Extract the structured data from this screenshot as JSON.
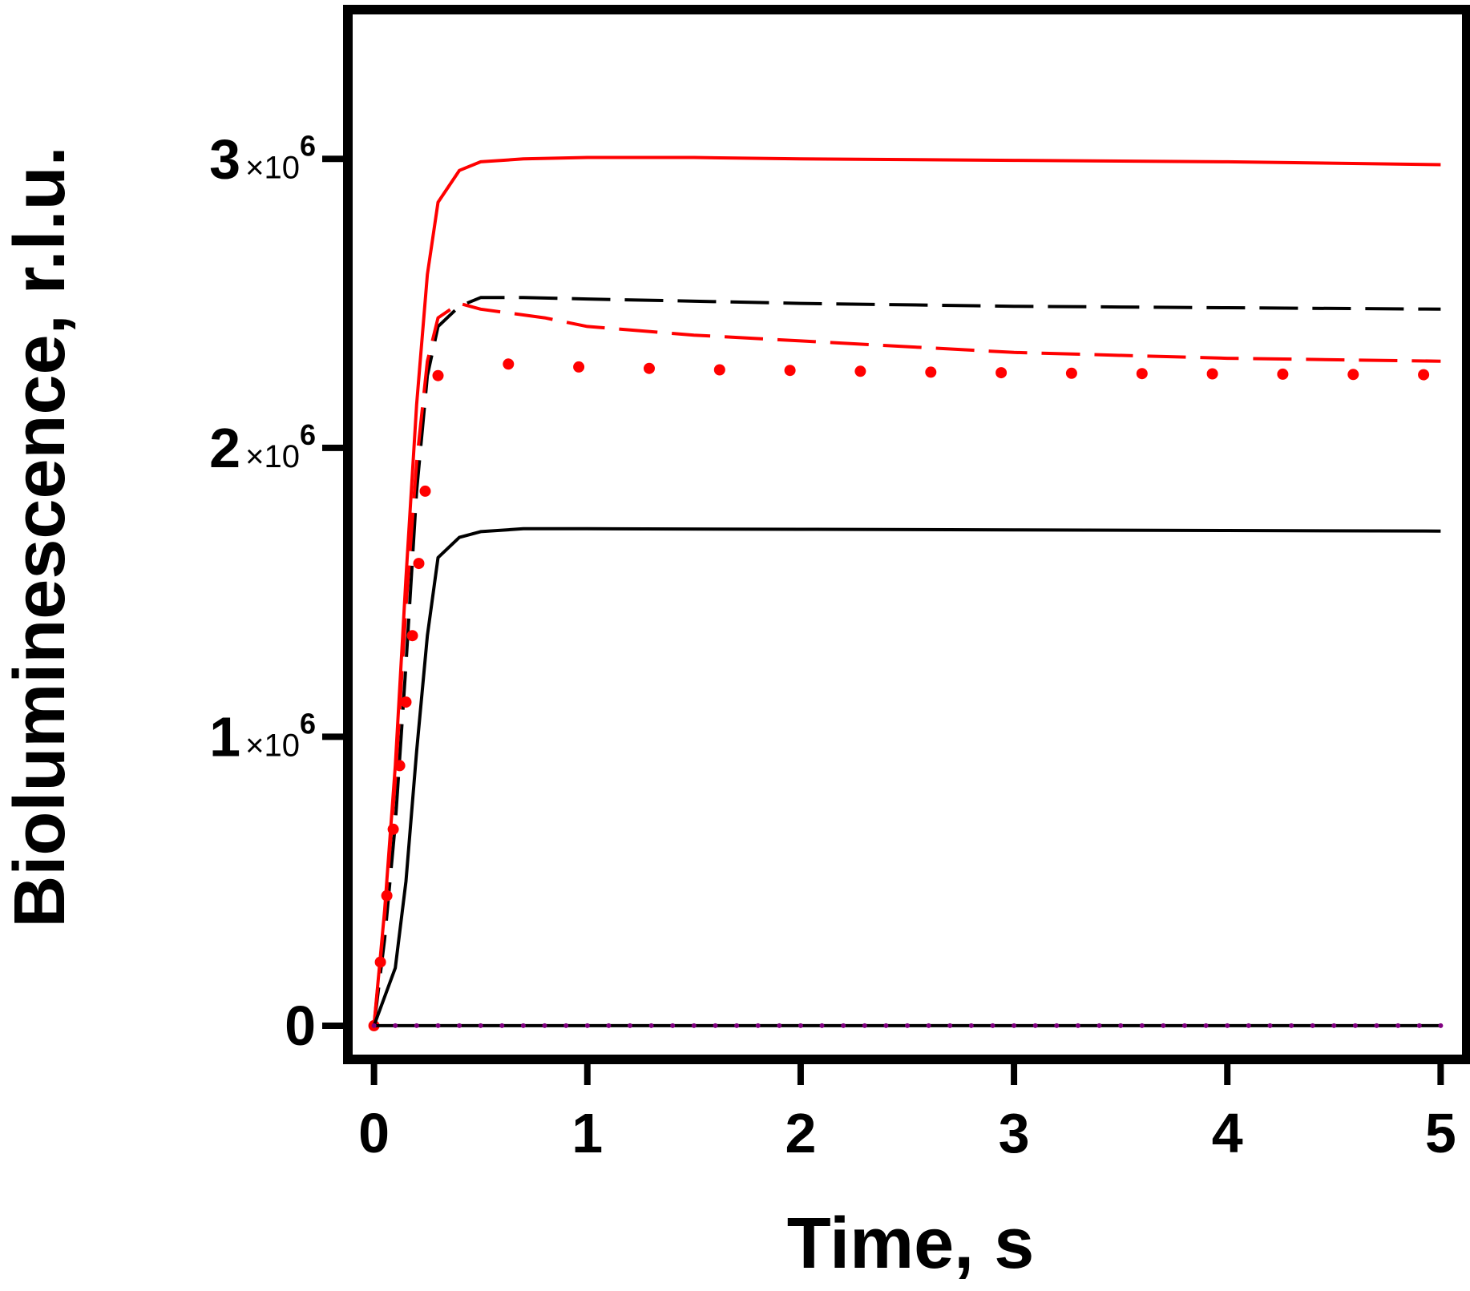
{
  "chart_data": {
    "type": "line",
    "title": "",
    "xlabel": "Time, s",
    "ylabel": "Bioluminescence, r.l.u.",
    "xlim": [
      -0.1,
      5.1
    ],
    "ylim": [
      -100000,
      3500000
    ],
    "x_ticks": [
      {
        "value": 0,
        "label": "0"
      },
      {
        "value": 1,
        "label": "1"
      },
      {
        "value": 2,
        "label": "2"
      },
      {
        "value": 3,
        "label": "3"
      },
      {
        "value": 4,
        "label": "4"
      },
      {
        "value": 5,
        "label": "5"
      }
    ],
    "y_ticks": [
      {
        "value": 0,
        "label": "0",
        "mantissa": "",
        "times": "",
        "exp": ""
      },
      {
        "value": 1000000,
        "label": "1×10^6",
        "mantissa": "1",
        "times": "×10",
        "exp": "6"
      },
      {
        "value": 2000000,
        "label": "2×10^6",
        "mantissa": "2",
        "times": "×10",
        "exp": "6"
      },
      {
        "value": 3000000,
        "label": "3×10^6",
        "mantissa": "3",
        "times": "×10",
        "exp": "6"
      }
    ],
    "grid": false,
    "legend": "none",
    "series": [
      {
        "color": "#ff0000",
        "style": "solid",
        "x": [
          0,
          0.05,
          0.1,
          0.15,
          0.2,
          0.25,
          0.3,
          0.4,
          0.5,
          0.7,
          1.0,
          1.5,
          2.0,
          3.0,
          4.0,
          5.0
        ],
        "y": [
          0,
          400000,
          900000,
          1550000,
          2150000,
          2600000,
          2850000,
          2960000,
          2990000,
          3000000,
          3005000,
          3005000,
          3000000,
          2995000,
          2990000,
          2980000
        ]
      },
      {
        "color": "#000000",
        "style": "dashed",
        "x": [
          0,
          0.05,
          0.1,
          0.15,
          0.2,
          0.25,
          0.3,
          0.4,
          0.5,
          0.7,
          1.0,
          2.0,
          3.0,
          4.0,
          5.0
        ],
        "y": [
          0,
          300000,
          700000,
          1250000,
          1850000,
          2250000,
          2420000,
          2490000,
          2520000,
          2520000,
          2515000,
          2500000,
          2490000,
          2485000,
          2480000
        ]
      },
      {
        "color": "#ff0000",
        "style": "dashed",
        "x": [
          0,
          0.05,
          0.1,
          0.15,
          0.2,
          0.25,
          0.3,
          0.4,
          0.5,
          0.8,
          1.0,
          1.5,
          2.0,
          2.5,
          3.0,
          4.0,
          5.0
        ],
        "y": [
          0,
          380000,
          850000,
          1450000,
          1950000,
          2300000,
          2450000,
          2500000,
          2480000,
          2450000,
          2420000,
          2390000,
          2370000,
          2350000,
          2330000,
          2310000,
          2300000
        ]
      },
      {
        "color": "#ff0000",
        "style": "dotted",
        "x": [
          0,
          0.03,
          0.06,
          0.09,
          0.12,
          0.15,
          0.18,
          0.21,
          0.24,
          0.3,
          0.63,
          0.96,
          1.29,
          1.62,
          1.95,
          2.28,
          2.61,
          2.94,
          3.27,
          3.6,
          3.93,
          4.26,
          4.59,
          4.92
        ],
        "y": [
          0,
          220000,
          450000,
          680000,
          900000,
          1120000,
          1350000,
          1600000,
          1850000,
          2250000,
          2290000,
          2280000,
          2275000,
          2270000,
          2268000,
          2265000,
          2262000,
          2260000,
          2258000,
          2257000,
          2256000,
          2255000,
          2254000,
          2253000
        ]
      },
      {
        "color": "#000000",
        "style": "solid",
        "x": [
          0,
          0.1,
          0.15,
          0.2,
          0.25,
          0.3,
          0.4,
          0.5,
          0.7,
          1.0,
          2.0,
          3.0,
          4.0,
          5.0
        ],
        "y": [
          0,
          200000,
          500000,
          950000,
          1350000,
          1620000,
          1690000,
          1710000,
          1720000,
          1720000,
          1718000,
          1716000,
          1714000,
          1712000
        ]
      },
      {
        "color": "#000000",
        "style": "solid",
        "x": [
          0,
          1,
          2,
          3,
          4,
          5
        ],
        "y": [
          0,
          0,
          0,
          0,
          0,
          0
        ]
      },
      {
        "color": "#800080",
        "style": "dotted",
        "x": [
          0,
          0.1,
          0.2,
          0.3,
          0.4,
          0.5,
          0.6,
          0.7,
          0.8,
          0.9,
          1.0,
          1.1,
          1.2,
          1.3,
          1.4,
          1.5,
          1.6,
          1.7,
          1.8,
          1.9,
          2.0,
          2.1,
          2.2,
          2.3,
          2.4,
          2.5,
          2.6,
          2.7,
          2.8,
          2.9,
          3.0,
          3.1,
          3.2,
          3.3,
          3.4,
          3.5,
          3.6,
          3.7,
          3.8,
          3.9,
          4.0,
          4.1,
          4.2,
          4.3,
          4.4,
          4.5,
          4.6,
          4.7,
          4.8,
          4.9,
          5.0
        ],
        "y": [
          0,
          0,
          0,
          0,
          0,
          0,
          0,
          0,
          0,
          0,
          0,
          0,
          0,
          0,
          0,
          0,
          0,
          0,
          0,
          0,
          0,
          0,
          0,
          0,
          0,
          0,
          0,
          0,
          0,
          0,
          0,
          0,
          0,
          0,
          0,
          0,
          0,
          0,
          0,
          0,
          0,
          0,
          0,
          0,
          0,
          0,
          0,
          0,
          0,
          0,
          0
        ]
      }
    ]
  }
}
